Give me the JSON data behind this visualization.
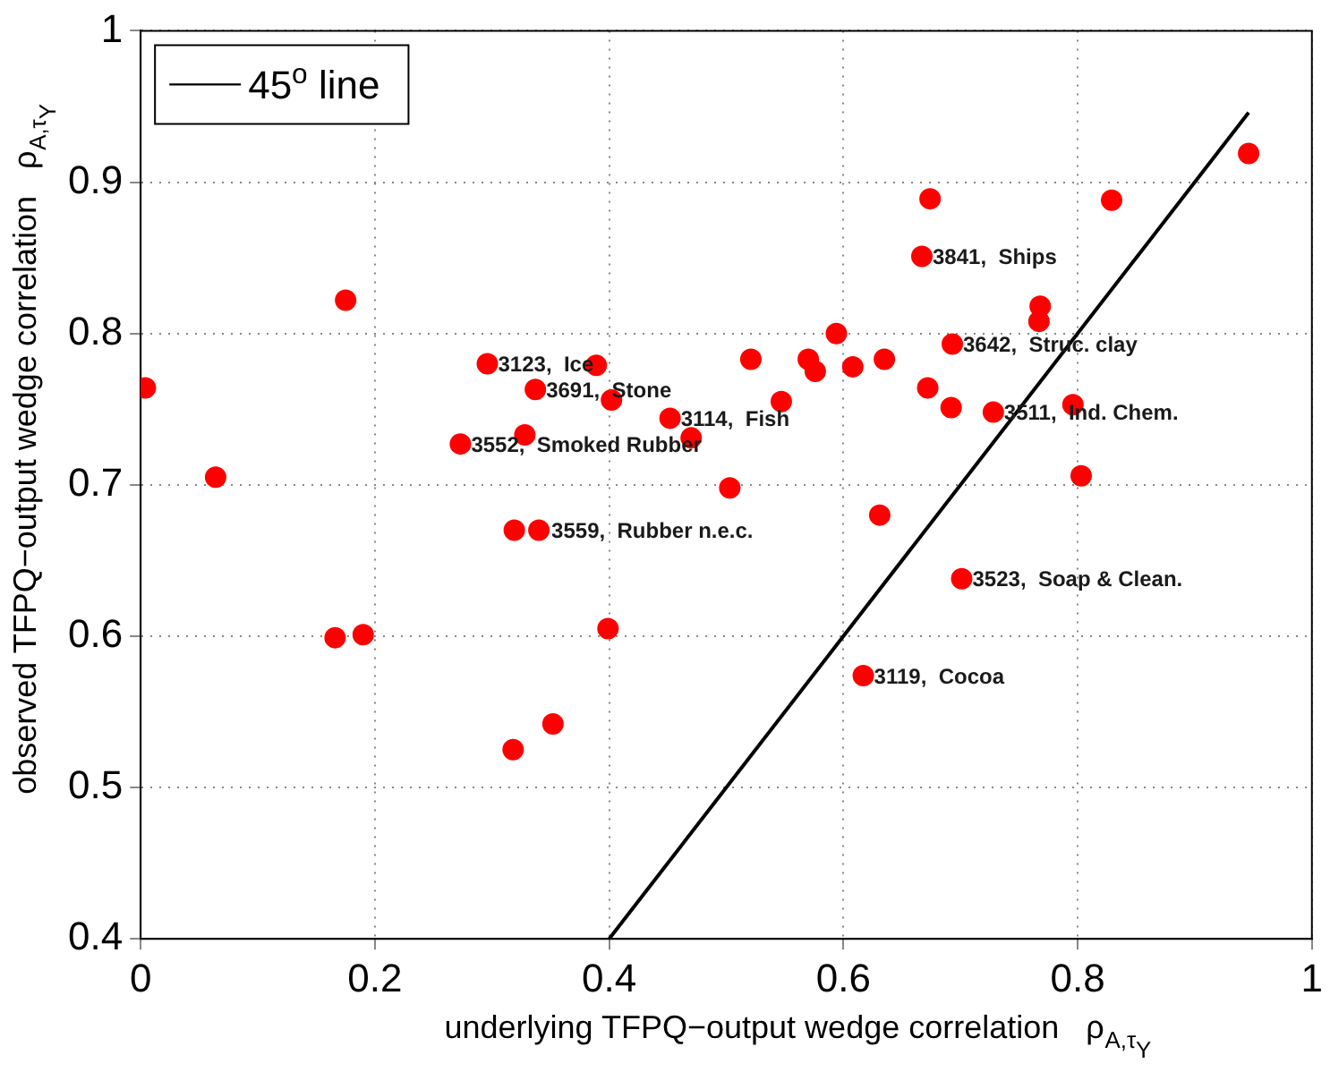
{
  "chart_data": {
    "type": "scatter",
    "xlabel": "underlying TFPQ−output wedge correlation   ρ$_{A,τ}$$_{Y}$",
    "ylabel": "observed TFPQ−output wedge correlation   ρ$_{A,τ}$$_{Y}$",
    "xlim": [
      0,
      1
    ],
    "xticks": [
      0,
      0.2,
      0.4,
      0.6,
      0.8,
      1
    ],
    "ylim": [
      0.4,
      1
    ],
    "yticks": [
      0.4,
      0.5,
      0.6,
      0.7,
      0.8,
      0.9,
      1
    ],
    "grid": true,
    "legend": "top left",
    "marker": "circle",
    "series": [
      {
        "color": "#ff0000",
        "x": [
          0.004,
          0.064,
          0.175,
          0.296,
          0.389,
          0.337,
          0.402,
          0.328,
          0.273,
          0.452,
          0.47,
          0.503,
          0.547,
          0.521,
          0.57,
          0.576,
          0.594,
          0.608,
          0.635,
          0.674,
          0.667,
          0.693,
          0.672,
          0.692,
          0.728,
          0.768,
          0.767,
          0.796,
          0.803,
          0.829,
          0.946,
          0.631,
          0.319,
          0.34,
          0.166,
          0.19,
          0.399,
          0.318,
          0.352,
          0.701,
          0.617
        ],
        "values": [
          0.764,
          0.705,
          0.822,
          0.78,
          0.779,
          0.763,
          0.756,
          0.733,
          0.727,
          0.744,
          0.731,
          0.698,
          0.755,
          0.783,
          0.783,
          0.775,
          0.8,
          0.778,
          0.783,
          0.889,
          0.851,
          0.793,
          0.764,
          0.751,
          0.748,
          0.818,
          0.808,
          0.753,
          0.706,
          0.888,
          0.919,
          0.68,
          0.67,
          0.67,
          0.599,
          0.601,
          0.605,
          0.525,
          0.542,
          0.638,
          0.574
        ]
      },
      {
        "type": "line",
        "name": "45$^{o}$ line",
        "color": "#000000",
        "line_style": "solid",
        "marker": "none",
        "x": [
          0.4,
          0.946
        ],
        "values": [
          0.4,
          0.946
        ]
      }
    ],
    "annotations": [
      {
        "text": "3123,  Ice",
        "x": 0.296,
        "y": 0.78
      },
      {
        "text": "3691,  Stone",
        "x": 0.337,
        "y": 0.763
      },
      {
        "text": "3552,  Smoked Rubber",
        "x": 0.273,
        "y": 0.727
      },
      {
        "text": "3559,  Rubber n.e.c.",
        "x": 0.319,
        "y": 0.67
      },
      {
        "text": "3114,  Fish",
        "x": 0.452,
        "y": 0.744
      },
      {
        "text": "3841,  Ships",
        "x": 0.667,
        "y": 0.851
      },
      {
        "text": "3642,  Struc. clay",
        "x": 0.693,
        "y": 0.793
      },
      {
        "text": "3511,  Ind. Chem.",
        "x": 0.728,
        "y": 0.748
      },
      {
        "text": "3523,  Soap & Clean.",
        "x": 0.701,
        "y": 0.638
      },
      {
        "text": "3119,  Cocoa",
        "x": 0.617,
        "y": 0.574
      }
    ]
  }
}
